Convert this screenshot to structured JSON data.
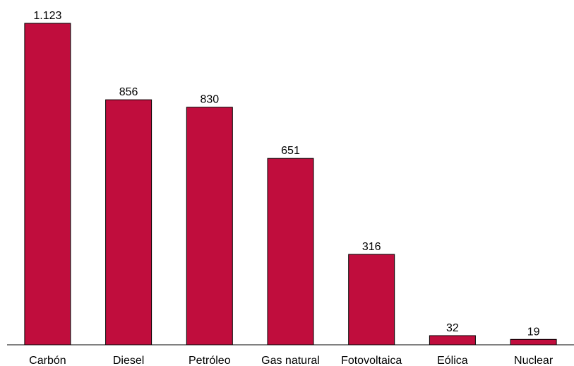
{
  "chart_data": {
    "type": "bar",
    "title": "",
    "xlabel": "",
    "ylabel": "",
    "ylim": [
      0,
      1123
    ],
    "grid": false,
    "legend": false,
    "bar_color": "#C00D3D",
    "categories": [
      "Carbón",
      "Diesel",
      "Petróleo",
      "Gas natural",
      "Fotovoltaica",
      "Eólica",
      "Nuclear"
    ],
    "values": [
      1123,
      856,
      830,
      651,
      316,
      32,
      19
    ],
    "value_labels": [
      "1.123",
      "856",
      "830",
      "651",
      "316",
      "32",
      "19"
    ]
  }
}
